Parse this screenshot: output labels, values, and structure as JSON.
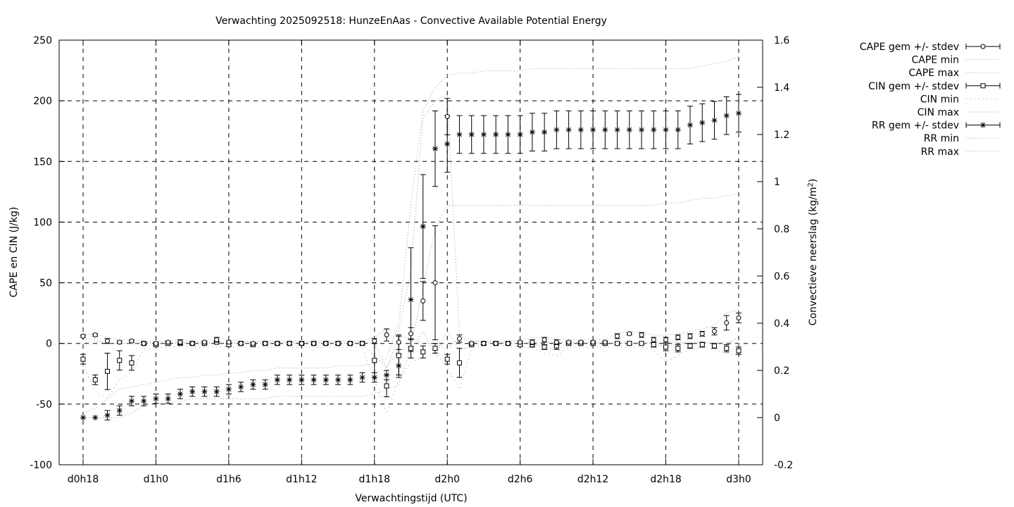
{
  "chart_data": {
    "type": "scatter",
    "title": "Verwachting 2025092518: HunzeEnAas - Convective Available Potential Energy",
    "xlabel": "Verwachtingstijd (UTC)",
    "ylabel": "CAPE en CIN (J/kg)",
    "y2label_main": "Convectieve neerslag (kg/m",
    "y2label_sup": "2",
    "y2label_end": ")",
    "xlim": [
      0,
      54
    ],
    "ylim": [
      -100,
      250
    ],
    "y2lim": [
      -0.2,
      1.6
    ],
    "grid": true,
    "legend_position": "outside-right",
    "x_ticks": [
      {
        "x": 0,
        "label": "d0h18"
      },
      {
        "x": 6,
        "label": "d1h0"
      },
      {
        "x": 12,
        "label": "d1h6"
      },
      {
        "x": 18,
        "label": "d1h12"
      },
      {
        "x": 24,
        "label": "d1h18"
      },
      {
        "x": 30,
        "label": "d2h0"
      },
      {
        "x": 36,
        "label": "d2h6"
      },
      {
        "x": 42,
        "label": "d2h12"
      },
      {
        "x": 48,
        "label": "d2h18"
      },
      {
        "x": 54,
        "label": "d3h0"
      }
    ],
    "y_ticks": [
      -100,
      -50,
      0,
      50,
      100,
      150,
      200,
      250
    ],
    "y2_ticks": [
      -0.2,
      0,
      0.2,
      0.4,
      0.6,
      0.8,
      1,
      1.2,
      1.4,
      1.6
    ],
    "legend": [
      {
        "label": "CAPE gem +/- stdev",
        "style": "errorbar",
        "symbol": "circle"
      },
      {
        "label": "CAPE min",
        "style": "dotted"
      },
      {
        "label": "CAPE max",
        "style": "dotted"
      },
      {
        "label": "CIN gem +/- stdev",
        "style": "errorbar",
        "symbol": "square"
      },
      {
        "label": "CIN min",
        "style": "sparse-dotted"
      },
      {
        "label": "CIN max",
        "style": "dotted"
      },
      {
        "label": "RR gem +/- stdev",
        "style": "errorbar",
        "symbol": "star"
      },
      {
        "label": "RR min",
        "style": "dotted"
      },
      {
        "label": "RR max",
        "style": "dotted"
      }
    ],
    "cape": {
      "x": [
        0,
        1,
        2,
        3,
        4,
        5,
        6,
        7,
        8,
        9,
        10,
        11,
        12,
        13,
        14,
        15,
        16,
        17,
        18,
        19,
        20,
        21,
        22,
        23,
        24,
        25,
        26,
        27,
        28,
        29,
        30,
        31,
        32,
        33,
        34,
        35,
        36,
        37,
        38,
        39,
        40,
        41,
        42,
        43,
        44,
        45,
        46,
        47,
        48,
        49,
        50,
        51,
        52,
        53,
        54
      ],
      "mean": [
        6,
        7,
        2,
        1,
        2,
        0,
        0,
        1,
        1,
        0,
        1,
        3,
        1,
        0,
        0,
        0,
        0,
        0,
        0,
        0,
        0,
        0,
        0,
        0,
        2,
        7,
        1,
        8,
        35,
        50,
        187,
        4,
        0,
        0,
        0,
        0,
        1,
        1,
        3,
        1,
        1,
        1,
        1,
        1,
        6,
        8,
        7,
        3,
        3,
        5,
        6,
        8,
        10,
        17,
        21
      ],
      "sd": [
        1,
        1,
        2,
        1,
        1,
        1,
        1,
        1,
        2,
        1,
        1,
        2,
        1,
        1,
        1,
        1,
        1,
        1,
        1,
        1,
        1,
        1,
        1,
        1,
        2,
        5,
        6,
        5,
        16,
        47,
        15,
        3,
        1,
        1,
        1,
        1,
        1,
        2,
        2,
        2,
        1,
        1,
        1,
        1,
        2,
        1,
        2,
        2,
        2,
        2,
        2,
        2,
        3,
        6,
        4
      ],
      "min": [
        4,
        3,
        0,
        0,
        0,
        0,
        0,
        0,
        0,
        0,
        0,
        0,
        0,
        0,
        0,
        0,
        0,
        0,
        0,
        0,
        0,
        0,
        0,
        0,
        -10,
        -20,
        -5,
        -5,
        10,
        -10,
        10,
        -5,
        -3,
        0,
        0,
        0,
        0,
        0,
        -3,
        -5,
        0,
        0,
        0,
        0,
        0,
        0,
        0,
        0,
        -3,
        0,
        0,
        0,
        0,
        0,
        5
      ],
      "max": [
        7,
        8,
        5,
        3,
        3,
        2,
        2,
        2,
        3,
        2,
        2,
        5,
        3,
        2,
        2,
        2,
        2,
        2,
        2,
        2,
        2,
        2,
        2,
        2,
        5,
        12,
        10,
        60,
        185,
        200,
        205,
        8,
        2,
        2,
        2,
        2,
        3,
        5,
        5,
        4,
        3,
        3,
        3,
        3,
        8,
        10,
        9,
        7,
        7,
        8,
        10,
        12,
        15,
        25,
        28
      ]
    },
    "cin": {
      "x": [
        0,
        1,
        2,
        3,
        4,
        5,
        6,
        7,
        8,
        9,
        10,
        11,
        12,
        13,
        14,
        15,
        16,
        17,
        18,
        19,
        20,
        21,
        22,
        23,
        24,
        25,
        26,
        27,
        28,
        29,
        30,
        31,
        32,
        33,
        34,
        35,
        36,
        37,
        38,
        39,
        40,
        41,
        42,
        43,
        44,
        45,
        46,
        47,
        48,
        49,
        50,
        51,
        52,
        53,
        54
      ],
      "mean": [
        -13,
        -30,
        -23,
        -14,
        -16,
        0,
        -1,
        0,
        0,
        0,
        0,
        1,
        -1,
        0,
        -1,
        0,
        0,
        0,
        0,
        0,
        0,
        0,
        0,
        0,
        -14,
        -35,
        -10,
        -4,
        -7,
        -4,
        -13,
        -16,
        -1,
        0,
        0,
        0,
        -1,
        -1,
        -3,
        -2,
        0,
        0,
        0,
        0,
        0,
        0,
        0,
        -1,
        -3,
        -4,
        -2,
        -1,
        -2,
        -4,
        -6
      ],
      "sd": [
        4,
        4,
        15,
        8,
        6,
        1,
        1,
        1,
        1,
        1,
        1,
        1,
        1,
        1,
        1,
        1,
        1,
        1,
        1,
        1,
        1,
        1,
        1,
        1,
        14,
        9,
        16,
        8,
        5,
        4,
        4,
        12,
        1,
        1,
        1,
        1,
        1,
        2,
        2,
        3,
        1,
        1,
        1,
        1,
        1,
        1,
        1,
        2,
        3,
        3,
        2,
        2,
        2,
        3,
        3
      ],
      "min": [
        -18,
        -40,
        -45,
        -30,
        -24,
        -5,
        -4,
        -3,
        -3,
        -3,
        -3,
        -3,
        -3,
        -3,
        -3,
        -3,
        -3,
        -3,
        -3,
        -3,
        -3,
        -3,
        -3,
        -3,
        -30,
        -58,
        -30,
        -15,
        -12,
        -8,
        -20,
        -38,
        -5,
        -2,
        -2,
        -2,
        -3,
        -4,
        -8,
        -10,
        -3,
        -3,
        -3,
        -3,
        -3,
        -3,
        -3,
        -6,
        -15,
        -10,
        -5,
        -4,
        -5,
        -8,
        -10
      ],
      "max": [
        0,
        2,
        0,
        0,
        0,
        1,
        1,
        1,
        1,
        1,
        1,
        1,
        1,
        1,
        1,
        1,
        1,
        1,
        1,
        1,
        1,
        1,
        1,
        1,
        0,
        -20,
        5,
        5,
        0,
        0,
        -5,
        5,
        1,
        1,
        1,
        1,
        1,
        1,
        1,
        1,
        1,
        1,
        1,
        1,
        1,
        1,
        1,
        1,
        1,
        1,
        1,
        1,
        1,
        1,
        1
      ]
    },
    "rr": {
      "x": [
        0,
        1,
        2,
        3,
        4,
        5,
        6,
        7,
        8,
        9,
        10,
        11,
        12,
        13,
        14,
        15,
        16,
        17,
        18,
        19,
        20,
        21,
        22,
        23,
        24,
        25,
        26,
        27,
        28,
        29,
        30,
        31,
        32,
        33,
        34,
        35,
        36,
        37,
        38,
        39,
        40,
        41,
        42,
        43,
        44,
        45,
        46,
        47,
        48,
        49,
        50,
        51,
        52,
        53,
        54
      ],
      "mean": [
        0,
        0,
        0.01,
        0.03,
        0.07,
        0.07,
        0.08,
        0.08,
        0.1,
        0.11,
        0.11,
        0.11,
        0.12,
        0.13,
        0.14,
        0.14,
        0.16,
        0.16,
        0.16,
        0.16,
        0.16,
        0.16,
        0.16,
        0.17,
        0.17,
        0.18,
        0.22,
        0.5,
        0.81,
        1.14,
        1.16,
        1.2,
        1.2,
        1.2,
        1.2,
        1.2,
        1.2,
        1.21,
        1.21,
        1.22,
        1.22,
        1.22,
        1.22,
        1.22,
        1.22,
        1.22,
        1.22,
        1.22,
        1.22,
        1.22,
        1.24,
        1.25,
        1.26,
        1.28,
        1.29
      ],
      "sd": [
        0,
        0,
        0.02,
        0.02,
        0.02,
        0.02,
        0.02,
        0.02,
        0.02,
        0.02,
        0.02,
        0.02,
        0.02,
        0.02,
        0.02,
        0.02,
        0.02,
        0.02,
        0.02,
        0.02,
        0.02,
        0.02,
        0.02,
        0.02,
        0.02,
        0.02,
        0.05,
        0.22,
        0.22,
        0.16,
        0.12,
        0.08,
        0.08,
        0.08,
        0.08,
        0.08,
        0.08,
        0.08,
        0.08,
        0.08,
        0.08,
        0.08,
        0.08,
        0.08,
        0.08,
        0.08,
        0.08,
        0.08,
        0.08,
        0.08,
        0.08,
        0.08,
        0.08,
        0.08,
        0.08
      ],
      "min": [
        0,
        0,
        0,
        0,
        0.02,
        0.05,
        0.06,
        0.06,
        0.07,
        0.08,
        0.08,
        0.08,
        0.08,
        0.08,
        0.08,
        0.08,
        0.09,
        0.09,
        0.09,
        0.09,
        0.09,
        0.09,
        0.09,
        0.09,
        0.1,
        0.12,
        0.14,
        0.3,
        0.55,
        0.8,
        0.9,
        0.9,
        0.9,
        0.9,
        0.9,
        0.9,
        0.9,
        0.9,
        0.9,
        0.9,
        0.9,
        0.9,
        0.9,
        0.9,
        0.9,
        0.9,
        0.9,
        0.9,
        0.91,
        0.91,
        0.92,
        0.93,
        0.93,
        0.94,
        0.95
      ],
      "max": [
        0.02,
        0.04,
        0.08,
        0.12,
        0.13,
        0.14,
        0.15,
        0.16,
        0.17,
        0.17,
        0.18,
        0.18,
        0.19,
        0.19,
        0.2,
        0.2,
        0.21,
        0.21,
        0.21,
        0.21,
        0.21,
        0.22,
        0.22,
        0.22,
        0.23,
        0.25,
        0.4,
        0.9,
        1.3,
        1.4,
        1.45,
        1.46,
        1.46,
        1.47,
        1.47,
        1.47,
        1.47,
        1.48,
        1.48,
        1.48,
        1.48,
        1.48,
        1.48,
        1.48,
        1.48,
        1.48,
        1.48,
        1.48,
        1.48,
        1.48,
        1.48,
        1.49,
        1.5,
        1.51,
        1.53
      ]
    }
  }
}
